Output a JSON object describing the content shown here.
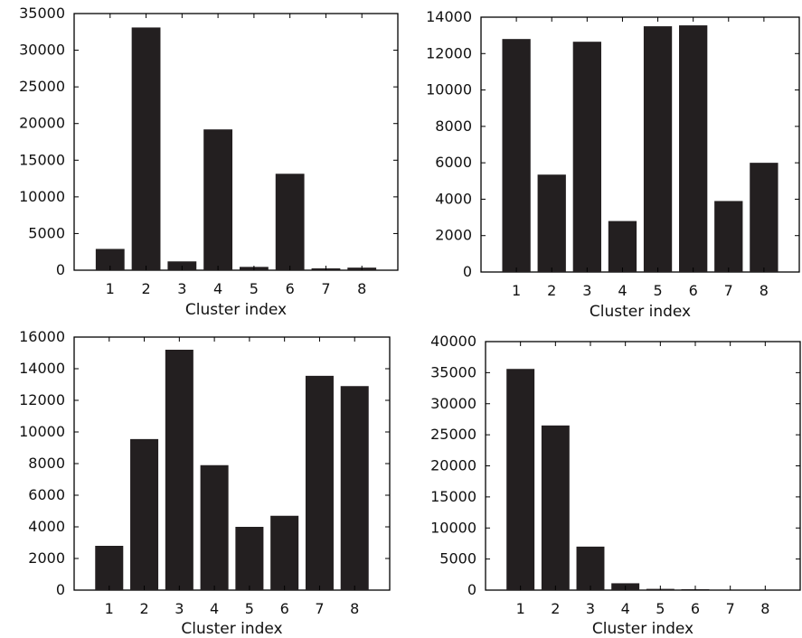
{
  "chart_data": [
    {
      "type": "bar",
      "categories": [
        "1",
        "2",
        "3",
        "4",
        "5",
        "6",
        "7",
        "8"
      ],
      "values": [
        2900,
        33100,
        1200,
        19200,
        450,
        13150,
        250,
        350
      ],
      "xlabel": "Cluster index",
      "ylabel": "",
      "ylim": [
        0,
        35000
      ],
      "yticks": [
        0,
        5000,
        10000,
        15000,
        20000,
        25000,
        30000,
        35000
      ],
      "bar_color": "#231f20",
      "grid": false,
      "legend": "none"
    },
    {
      "type": "bar",
      "categories": [
        "1",
        "2",
        "3",
        "4",
        "5",
        "6",
        "7",
        "8"
      ],
      "values": [
        12800,
        5350,
        12650,
        2800,
        13500,
        13550,
        3900,
        6000
      ],
      "xlabel": "Cluster index",
      "ylabel": "",
      "ylim": [
        0,
        14000
      ],
      "yticks": [
        0,
        2000,
        4000,
        6000,
        8000,
        10000,
        12000,
        14000
      ],
      "bar_color": "#231f20",
      "grid": false,
      "legend": "none"
    },
    {
      "type": "bar",
      "categories": [
        "1",
        "2",
        "3",
        "4",
        "5",
        "6",
        "7",
        "8"
      ],
      "values": [
        2800,
        9550,
        15200,
        7900,
        4000,
        4700,
        13550,
        12900
      ],
      "xlabel": "Cluster index",
      "ylabel": "",
      "ylim": [
        0,
        16000
      ],
      "yticks": [
        0,
        2000,
        4000,
        6000,
        8000,
        10000,
        12000,
        14000,
        16000
      ],
      "bar_color": "#231f20",
      "grid": false,
      "legend": "none"
    },
    {
      "type": "bar",
      "categories": [
        "1",
        "2",
        "3",
        "4",
        "5",
        "6",
        "7",
        "8"
      ],
      "values": [
        35600,
        26500,
        7000,
        1100,
        200,
        150,
        0,
        0
      ],
      "xlabel": "Cluster index",
      "ylabel": "",
      "ylim": [
        0,
        40000
      ],
      "yticks": [
        0,
        5000,
        10000,
        15000,
        20000,
        25000,
        30000,
        35000,
        40000
      ],
      "bar_color": "#231f20",
      "grid": false,
      "legend": "none"
    }
  ]
}
